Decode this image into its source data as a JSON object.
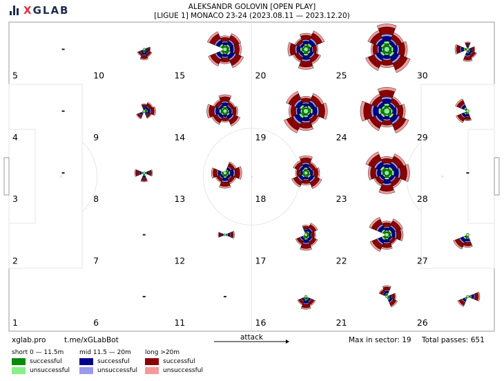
{
  "header": {
    "brand_x": "X",
    "brand_rest": "GLAB",
    "title_line1": "ALEKSANDR GOLOVIN [OPEN PLAY]",
    "title_line2": "[LIGUE 1] MONACO 23-24 (2023.08.11 — 2023.12.20)"
  },
  "footer": {
    "site": "xglab.pro",
    "bot": "t.me/xGLabBot",
    "attack_label": "attack",
    "max_sector": "Max in sector: 19",
    "total_passes": "Total passes: 651"
  },
  "legend": {
    "short_title": "short 0 — 11.5m",
    "mid_title": "mid 11.5 — 20m",
    "long_title": "long >20m",
    "successful": "successful",
    "unsuccessful": "unsuccessful",
    "colors": {
      "short_succ": "#0a8a0a",
      "short_unsucc": "#88f088",
      "mid_succ": "#00008b",
      "mid_unsucc": "#9a9aea",
      "long_succ": "#8b0000",
      "long_unsucc": "#f49a9a"
    }
  },
  "chart_data": {
    "type": "pass-rose grid",
    "columns": 6,
    "rows": 5,
    "max_in_sector": 19,
    "total_passes": 651,
    "zone_ids": [
      5,
      10,
      15,
      20,
      25,
      30,
      4,
      9,
      14,
      19,
      24,
      29,
      3,
      8,
      13,
      18,
      23,
      28,
      2,
      7,
      12,
      17,
      22,
      27,
      1,
      6,
      11,
      16,
      21,
      26
    ],
    "zones": [
      {
        "zone": 5,
        "level": 1,
        "dirs": [],
        "tiny": true
      },
      {
        "zone": 10,
        "level": 3,
        "dirs": [
          0,
          1,
          2,
          3
        ]
      },
      {
        "zone": 15,
        "level": 10,
        "dirs": [
          0,
          1,
          2,
          3,
          5,
          6,
          7
        ]
      },
      {
        "zone": 20,
        "level": 11,
        "dirs": [
          0,
          1,
          2,
          3,
          4,
          5,
          6,
          7
        ]
      },
      {
        "zone": 25,
        "level": 16,
        "dirs": [
          0,
          1,
          2,
          3,
          4,
          5,
          6,
          7
        ]
      },
      {
        "zone": 30,
        "level": 4,
        "dirs": [
          0,
          1,
          2,
          4,
          6
        ]
      },
      {
        "zone": 4,
        "level": 1,
        "dirs": [],
        "tiny": true
      },
      {
        "zone": 9,
        "level": 4,
        "dirs": [
          0,
          1,
          3,
          6,
          7
        ]
      },
      {
        "zone": 14,
        "level": 9,
        "dirs": [
          0,
          1,
          2,
          3,
          4,
          5,
          6,
          7
        ]
      },
      {
        "zone": 19,
        "level": 14,
        "dirs": [
          0,
          1,
          2,
          3,
          4,
          5,
          6,
          7
        ]
      },
      {
        "zone": 24,
        "level": 19,
        "dirs": [
          0,
          1,
          2,
          3,
          4,
          5,
          6,
          7
        ]
      },
      {
        "zone": 29,
        "level": 6,
        "dirs": [
          2,
          3,
          5
        ]
      },
      {
        "zone": 3,
        "level": 1,
        "dirs": [],
        "tiny": true
      },
      {
        "zone": 8,
        "level": 3,
        "dirs": [
          0,
          2,
          4
        ]
      },
      {
        "zone": 13,
        "level": 7,
        "dirs": [
          0,
          1,
          2,
          3,
          4,
          7
        ]
      },
      {
        "zone": 18,
        "level": 8,
        "dirs": [
          0,
          1,
          2,
          3,
          4,
          5,
          6,
          7
        ]
      },
      {
        "zone": 23,
        "level": 13,
        "dirs": [
          0,
          1,
          2,
          3,
          4,
          5,
          6,
          7
        ]
      },
      {
        "zone": 28,
        "level": 1,
        "dirs": [],
        "tiny": true
      },
      {
        "zone": 2,
        "level": 0,
        "dirs": []
      },
      {
        "zone": 7,
        "level": 1,
        "dirs": [],
        "tiny": true
      },
      {
        "zone": 12,
        "level": 3,
        "dirs": [
          0,
          4
        ]
      },
      {
        "zone": 17,
        "level": 6,
        "dirs": [
          0,
          1,
          2,
          3,
          6,
          7
        ]
      },
      {
        "zone": 22,
        "level": 9,
        "dirs": [
          0,
          1,
          2,
          3,
          5,
          6,
          7
        ]
      },
      {
        "zone": 27,
        "level": 6,
        "dirs": [
          2,
          3
        ]
      },
      {
        "zone": 1,
        "level": 0,
        "dirs": []
      },
      {
        "zone": 6,
        "level": 1,
        "dirs": [],
        "tiny": true
      },
      {
        "zone": 11,
        "level": 1,
        "dirs": [],
        "tiny": true
      },
      {
        "zone": 16,
        "level": 4,
        "dirs": [
          1,
          2,
          3
        ]
      },
      {
        "zone": 21,
        "level": 4,
        "dirs": [
          0,
          1,
          5,
          6
        ]
      },
      {
        "zone": 26,
        "level": 4,
        "dirs": [
          0,
          3
        ]
      }
    ]
  }
}
